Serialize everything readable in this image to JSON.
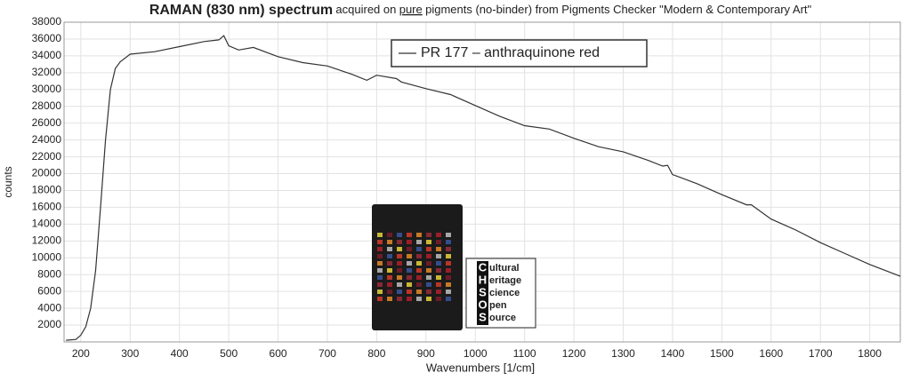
{
  "chart_data": {
    "type": "line",
    "title": "RAMAN (830 nm) spectrum",
    "subtitle_parts": [
      "acquired on",
      "pure",
      "pigments (no-binder) from Pigments Checker \"Modern & Contemporary Art\""
    ],
    "x_label": "Wavenumbers [1/cm]",
    "y_label": "counts",
    "x": [
      170,
      190,
      200,
      210,
      220,
      230,
      240,
      250,
      260,
      270,
      280,
      300,
      350,
      400,
      450,
      480,
      490,
      500,
      520,
      550,
      600,
      650,
      700,
      750,
      780,
      800,
      840,
      850,
      900,
      950,
      1000,
      1050,
      1100,
      1150,
      1200,
      1250,
      1300,
      1350,
      1380,
      1390,
      1400,
      1450,
      1500,
      1550,
      1560,
      1600,
      1650,
      1700,
      1750,
      1800,
      1862
    ],
    "series": [
      {
        "name": "PR 177 – anthraquinone red",
        "color": "#333333",
        "values": [
          200,
          300,
          800,
          1800,
          4000,
          8500,
          16000,
          24000,
          30000,
          32500,
          33300,
          34200,
          34500,
          35100,
          35700,
          35900,
          36400,
          35200,
          34700,
          35000,
          33900,
          33200,
          32800,
          31800,
          31100,
          31700,
          31300,
          30900,
          30100,
          29400,
          28100,
          26800,
          25700,
          25300,
          24200,
          23200,
          22600,
          21600,
          20900,
          21000,
          19900,
          18800,
          17500,
          16300,
          16300,
          14600,
          13300,
          11800,
          10500,
          9200,
          7800
        ]
      }
    ],
    "xlim": [
      166,
      1862
    ],
    "ylim": [
      0,
      38000
    ],
    "xticks": [
      200,
      300,
      400,
      500,
      600,
      700,
      800,
      900,
      1000,
      1100,
      1200,
      1300,
      1400,
      1500,
      1600,
      1700,
      1800
    ],
    "yticks": [
      2000,
      4000,
      6000,
      8000,
      10000,
      12000,
      14000,
      16000,
      18000,
      20000,
      22000,
      24000,
      26000,
      28000,
      30000,
      32000,
      34000,
      36000,
      38000
    ],
    "grid": true,
    "logo": {
      "letters": [
        "C",
        "H",
        "S",
        "O",
        "S"
      ],
      "words": [
        "ultural",
        "eritage",
        "cience",
        "pen",
        "ource"
      ]
    }
  }
}
